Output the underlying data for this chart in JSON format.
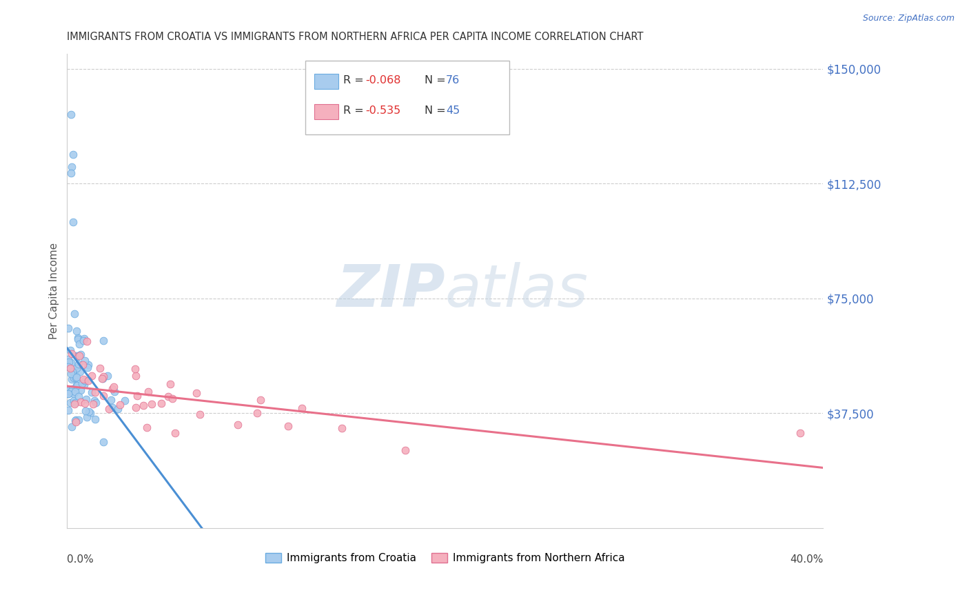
{
  "title": "IMMIGRANTS FROM CROATIA VS IMMIGRANTS FROM NORTHERN AFRICA PER CAPITA INCOME CORRELATION CHART",
  "source": "Source: ZipAtlas.com",
  "ylabel": "Per Capita Income",
  "yticks": [
    0,
    37500,
    75000,
    112500,
    150000
  ],
  "ytick_labels": [
    "",
    "$37,500",
    "$75,000",
    "$112,500",
    "$150,000"
  ],
  "xmin": 0.0,
  "xmax": 0.4,
  "ymin": 0,
  "ymax": 155000,
  "croatia_color": "#A8CCEE",
  "croatia_edge": "#6AABE0",
  "n_africa_color": "#F5B0BE",
  "n_africa_edge": "#E07090",
  "trend_croatia_color": "#4A8FD4",
  "trend_n_africa_color": "#E8708A",
  "watermark_zip_color": "#BDD3E8",
  "watermark_atlas_color": "#C8D8EC",
  "legend_label_croatia": "Immigrants from Croatia",
  "legend_label_n_africa": "Immigrants from Northern Africa",
  "grid_color": "#CCCCCC",
  "title_color": "#333333",
  "source_color": "#4472C4",
  "r_value_color": "#E03030",
  "n_value_color": "#4472C4",
  "axis_label_color": "#555555",
  "tick_label_color": "#4472C4"
}
